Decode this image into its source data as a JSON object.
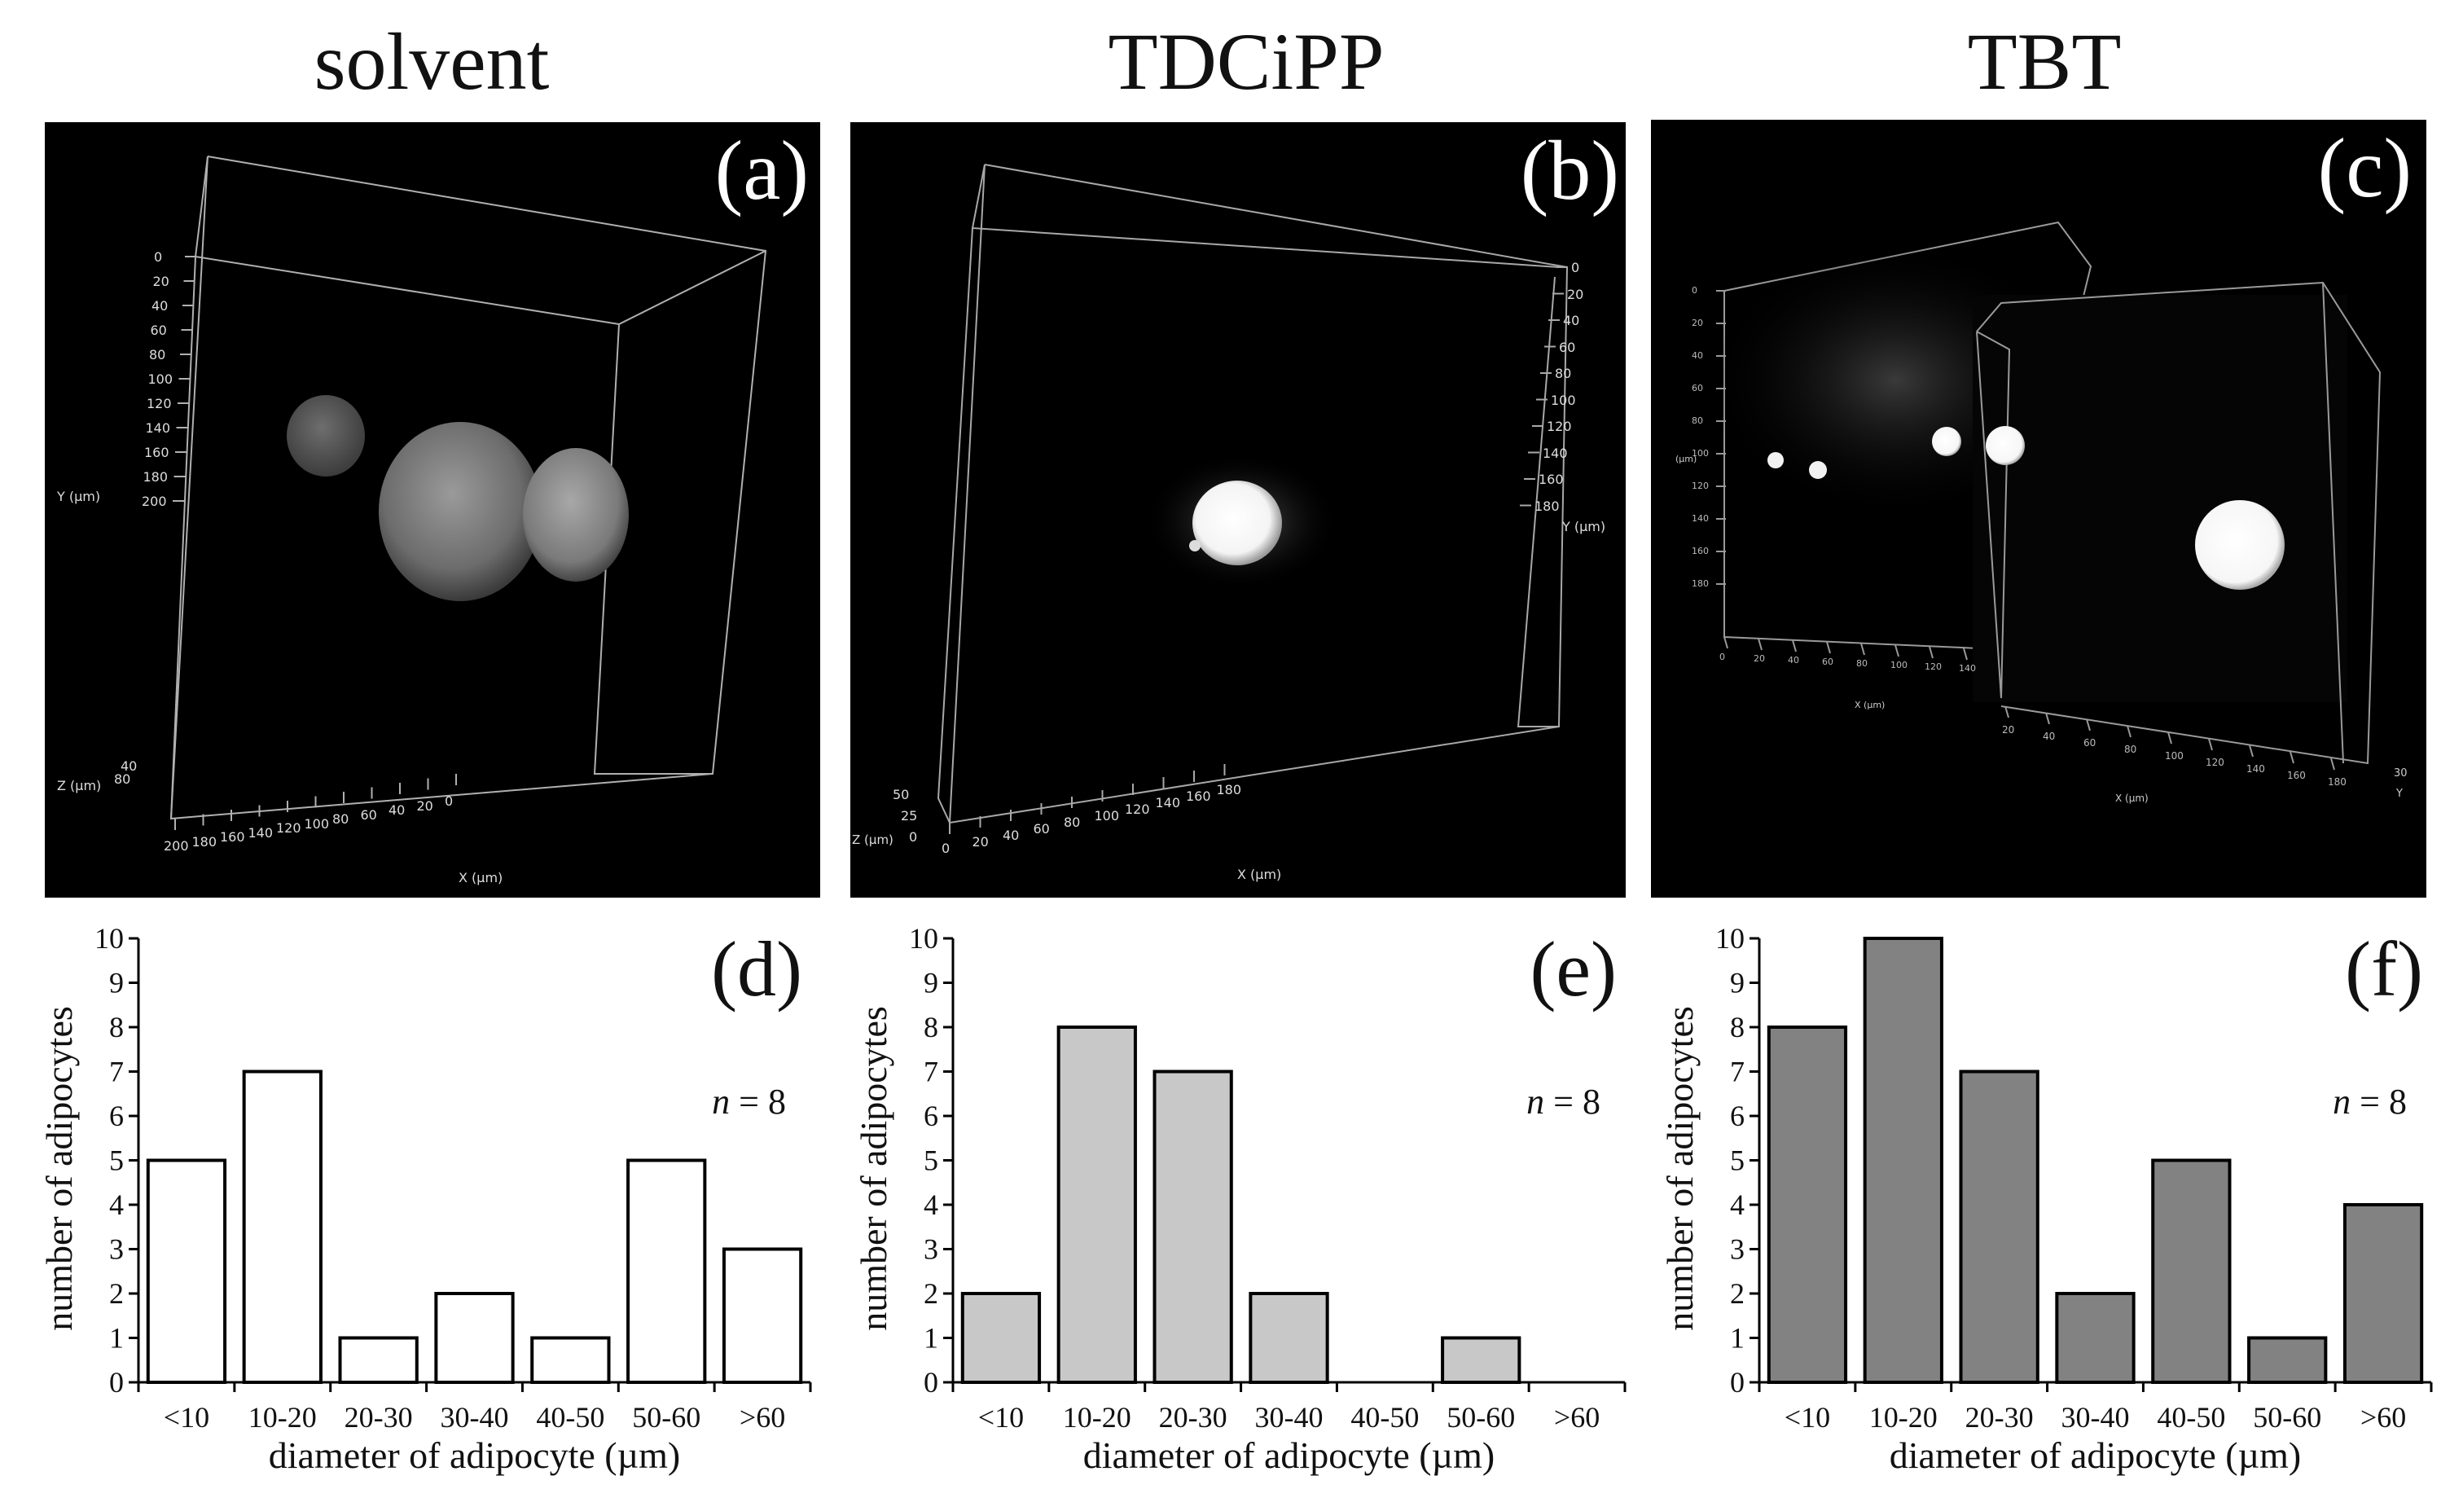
{
  "figure": {
    "columns": [
      {
        "title": "solvent",
        "image_label": "(a)",
        "chart_label": "(d)"
      },
      {
        "title": "TDCiPP",
        "image_label": "(b)",
        "chart_label": "(e)"
      },
      {
        "title": "TBT",
        "image_label": "(c)",
        "chart_label": "(f)"
      }
    ],
    "microscopy": {
      "a": {
        "y_ticks": [
          "0",
          "20",
          "40",
          "60",
          "80",
          "100",
          "120",
          "140",
          "160",
          "180",
          "200"
        ],
        "y_label": "Y (µm)",
        "z_ticks": [
          "40",
          "80"
        ],
        "z_label": "Z (µm)",
        "x_ticks": [
          "200",
          "180",
          "160",
          "140",
          "120",
          "100",
          "80",
          "60",
          "40",
          "20",
          "0"
        ],
        "x_label": "X (µm)"
      },
      "b": {
        "y_ticks": [
          "0",
          "20",
          "40",
          "60",
          "80",
          "100",
          "120",
          "140",
          "160",
          "180"
        ],
        "y_label": "Y (µm)",
        "z_ticks": [
          "50",
          "25",
          "0"
        ],
        "z_label": "Z (µm)",
        "x_ticks": [
          "0",
          "20",
          "40",
          "60",
          "80",
          "100",
          "120",
          "140",
          "160",
          "180"
        ],
        "x_label": "X (µm)"
      },
      "c": {
        "y_ticks": [
          "0",
          "20",
          "40",
          "60",
          "80",
          "100",
          "120",
          "140",
          "160",
          "180"
        ],
        "y_label": "(µm)",
        "x_ticks": [
          "0",
          "20",
          "40",
          "60",
          "80",
          "100",
          "120",
          "140"
        ],
        "x_label": "X (µm)",
        "x2_ticks": [
          "20",
          "40",
          "60",
          "80",
          "100",
          "120",
          "140",
          "160",
          "180"
        ],
        "x2_label": "X (µm)",
        "y2_label": "Y",
        "y2_tick": "30"
      }
    },
    "colors": {
      "bar_solvent": "#ffffff",
      "bar_tdcipp": "#c8c8c8",
      "bar_tbt": "#828282",
      "stroke": "#000000"
    }
  },
  "chart_data": [
    {
      "type": "bar",
      "panel": "(d)",
      "group": "solvent",
      "categories": [
        "<10",
        "10-20",
        "20-30",
        "30-40",
        "40-50",
        "50-60",
        ">60"
      ],
      "values": [
        5,
        7,
        1,
        2,
        1,
        5,
        3
      ],
      "ylim": [
        0,
        10
      ],
      "yticks": [
        "0",
        "1",
        "2",
        "3",
        "4",
        "5",
        "6",
        "7",
        "8",
        "9",
        "10"
      ],
      "xlabel": "diameter of adipocyte (µm)",
      "ylabel": "number of adipocytes",
      "annotation_n": "n",
      "annotation_value": " = 8",
      "color": "#ffffff"
    },
    {
      "type": "bar",
      "panel": "(e)",
      "group": "TDCiPP",
      "categories": [
        "<10",
        "10-20",
        "20-30",
        "30-40",
        "40-50",
        "50-60",
        ">60"
      ],
      "values": [
        2,
        8,
        7,
        2,
        0,
        1,
        0
      ],
      "ylim": [
        0,
        10
      ],
      "yticks": [
        "0",
        "1",
        "2",
        "3",
        "4",
        "5",
        "6",
        "7",
        "8",
        "9",
        "10"
      ],
      "xlabel": "diameter of adipocyte (µm)",
      "ylabel": "number of adipocytes",
      "annotation_n": "n",
      "annotation_value": " = 8",
      "color": "#c8c8c8"
    },
    {
      "type": "bar",
      "panel": "(f)",
      "group": "TBT",
      "categories": [
        "<10",
        "10-20",
        "20-30",
        "30-40",
        "40-50",
        "50-60",
        ">60"
      ],
      "values": [
        8,
        10,
        7,
        2,
        5,
        1,
        4
      ],
      "ylim": [
        0,
        10
      ],
      "yticks": [
        "0",
        "1",
        "2",
        "3",
        "4",
        "5",
        "6",
        "7",
        "8",
        "9",
        "10"
      ],
      "xlabel": "diameter of adipocyte (µm)",
      "ylabel": "number of adipocytes",
      "annotation_n": "n",
      "annotation_value": " = 8",
      "color": "#828282"
    }
  ]
}
